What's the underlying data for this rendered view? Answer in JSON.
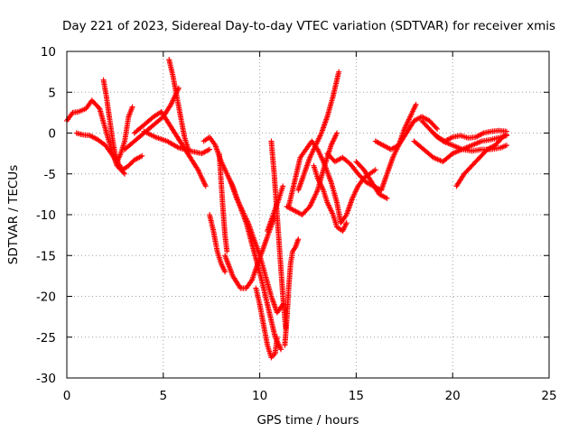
{
  "chart_data": {
    "type": "scatter",
    "title": "Day 221 of 2023, Sidereal Day-to-day VTEC variation (SDTVAR) for receiver xmis",
    "xlabel": "GPS time / hours",
    "ylabel": "SDTVAR / TECUs",
    "xlim": [
      0,
      25
    ],
    "ylim": [
      -30,
      10
    ],
    "xticks": [
      "0",
      "5",
      "10",
      "15",
      "20",
      "25"
    ],
    "yticks": [
      "10",
      "5",
      "0",
      "-5",
      "-10",
      "-15",
      "-20",
      "-25",
      "-30"
    ],
    "grid": true,
    "marker": "+",
    "color": "#ff0000",
    "series": [
      {
        "x": [
          0,
          0.3,
          0.6,
          1.0,
          1.3,
          1.7,
          2.0,
          2.3,
          2.6,
          3.0
        ],
        "y": [
          1.5,
          2.5,
          2.6,
          3.0,
          4.0,
          3.0,
          0.5,
          -2.0,
          -4.0,
          -5.0
        ]
      },
      {
        "x": [
          0.5,
          0.8,
          1.2,
          1.6,
          2.0,
          2.3,
          2.6,
          2.9,
          3.2,
          3.5,
          3.9
        ],
        "y": [
          0.0,
          -0.2,
          -0.3,
          -0.8,
          -1.5,
          -2.5,
          -3.5,
          -4.5,
          -4.0,
          -3.3,
          -2.8
        ]
      },
      {
        "x": [
          1.9,
          2.05,
          2.2,
          2.35,
          2.5,
          2.65
        ],
        "y": [
          6.5,
          4.5,
          2.0,
          -0.5,
          -2.5,
          -3.5
        ]
      },
      {
        "x": [
          2.6,
          2.8,
          3.0,
          3.1,
          3.2,
          3.4
        ],
        "y": [
          -3.5,
          -2.5,
          -1.0,
          0.5,
          2.0,
          3.2
        ]
      },
      {
        "x": [
          3.0,
          3.5,
          4.0,
          4.5,
          5.0,
          5.4,
          5.8
        ],
        "y": [
          -2.0,
          -1.0,
          0.0,
          1.0,
          2.0,
          3.5,
          5.5
        ]
      },
      {
        "x": [
          3.5,
          4.0,
          4.5,
          4.9,
          5.2,
          5.6,
          6.0,
          6.4,
          6.8,
          7.2
        ],
        "y": [
          0.0,
          1.0,
          2.0,
          2.6,
          1.5,
          0.0,
          -1.5,
          -3.0,
          -4.5,
          -6.5
        ]
      },
      {
        "x": [
          5.3,
          5.5,
          5.7,
          5.9,
          6.1,
          6.3
        ],
        "y": [
          9.0,
          7.0,
          4.5,
          2.0,
          -0.5,
          -2.0
        ]
      },
      {
        "x": [
          4.0,
          4.6,
          5.2,
          5.8,
          6.4,
          7.0,
          7.4
        ],
        "y": [
          0.2,
          -0.5,
          -1.0,
          -1.8,
          -2.2,
          -2.5,
          -2.0
        ]
      },
      {
        "x": [
          7.1,
          7.4,
          7.7,
          8.0,
          8.3,
          8.6,
          8.9,
          9.3,
          9.7,
          10.1,
          10.5,
          10.8,
          11.1
        ],
        "y": [
          -1.0,
          -0.5,
          -1.5,
          -3.5,
          -5.0,
          -6.5,
          -8.5,
          -11.0,
          -14.5,
          -18.0,
          -22.0,
          -25.0,
          -26.5
        ]
      },
      {
        "x": [
          7.4,
          7.6,
          7.8,
          8.0,
          8.2
        ],
        "y": [
          -10.0,
          -12.0,
          -14.5,
          -16.0,
          -17.0
        ]
      },
      {
        "x": [
          7.9,
          8.0,
          8.1,
          8.2,
          8.3
        ],
        "y": [
          -2.5,
          -6.0,
          -9.5,
          -12.5,
          -14.5
        ]
      },
      {
        "x": [
          8.5,
          8.8,
          9.1,
          9.4,
          9.7,
          10.0,
          10.3,
          10.6,
          10.9,
          11.2
        ],
        "y": [
          -6.0,
          -8.0,
          -9.5,
          -11.0,
          -13.0,
          -15.0,
          -17.5,
          -20.0,
          -22.0,
          -21.0
        ]
      },
      {
        "x": [
          8.2,
          8.6,
          9.0,
          9.3,
          9.6,
          9.9,
          10.2,
          10.5,
          10.8
        ],
        "y": [
          -15.0,
          -17.5,
          -19.0,
          -19.0,
          -18.0,
          -16.0,
          -14.0,
          -12.0,
          -10.0
        ]
      },
      {
        "x": [
          9.8,
          10.0,
          10.2,
          10.4,
          10.6,
          10.8,
          10.9
        ],
        "y": [
          -19.0,
          -21.0,
          -23.5,
          -26.0,
          -27.5,
          -27.0,
          -25.0
        ]
      },
      {
        "x": [
          10.6,
          10.75,
          10.9,
          11.05,
          11.2,
          11.35
        ],
        "y": [
          -1.0,
          -5.0,
          -10.0,
          -15.0,
          -20.0,
          -24.0
        ]
      },
      {
        "x": [
          11.3,
          11.4,
          11.5,
          11.6,
          11.7,
          11.85,
          12.0
        ],
        "y": [
          -26.0,
          -23.0,
          -19.0,
          -16.0,
          -14.5,
          -14.0,
          -13.0
        ]
      },
      {
        "x": [
          10.4,
          10.7,
          11.0,
          11.2
        ],
        "y": [
          -12.0,
          -10.0,
          -8.0,
          -6.5
        ]
      },
      {
        "x": [
          11.4,
          11.8,
          12.2,
          12.6,
          13.0,
          13.3,
          13.7,
          14.0
        ],
        "y": [
          -9.0,
          -9.5,
          -10.0,
          -9.0,
          -7.0,
          -4.5,
          -1.5,
          0.0
        ]
      },
      {
        "x": [
          11.5,
          11.8,
          12.1,
          12.4,
          12.7,
          13.0,
          13.3,
          13.7,
          14.0,
          14.2
        ],
        "y": [
          -9.0,
          -6.0,
          -3.0,
          -2.0,
          -1.0,
          -2.0,
          -3.5,
          -6.0,
          -8.5,
          -11.0
        ]
      },
      {
        "x": [
          12.0,
          12.3,
          12.6,
          12.9,
          13.2,
          13.5,
          13.8,
          14.1
        ],
        "y": [
          -7.0,
          -5.0,
          -3.0,
          -1.5,
          0.0,
          2.0,
          4.5,
          7.5
        ]
      },
      {
        "x": [
          12.8,
          13.0,
          13.3,
          13.5,
          13.8,
          14.0,
          14.3,
          14.5
        ],
        "y": [
          -4.0,
          -5.5,
          -7.0,
          -8.5,
          -10.0,
          -11.5,
          -12.0,
          -11.0
        ]
      },
      {
        "x": [
          14.2,
          14.5,
          14.8,
          15.1,
          15.4,
          15.7,
          16.0
        ],
        "y": [
          -11.0,
          -10.0,
          -8.0,
          -6.5,
          -5.5,
          -5.0,
          -4.5
        ]
      },
      {
        "x": [
          13.5,
          13.9,
          14.3,
          14.7,
          15.1,
          15.5,
          15.9,
          16.3
        ],
        "y": [
          -2.5,
          -3.5,
          -3.0,
          -3.8,
          -5.0,
          -6.0,
          -6.5,
          -7.0
        ]
      },
      {
        "x": [
          15.0,
          15.4,
          15.8,
          16.2,
          16.6
        ],
        "y": [
          -3.5,
          -4.5,
          -6.0,
          -7.5,
          -8.0
        ]
      },
      {
        "x": [
          16.3,
          16.6,
          16.9,
          17.2,
          17.5,
          17.8,
          18.1
        ],
        "y": [
          -7.0,
          -5.0,
          -3.0,
          -1.5,
          0.5,
          2.0,
          3.5
        ]
      },
      {
        "x": [
          16.0,
          16.4,
          16.8,
          17.2,
          17.6,
          18.0,
          18.4,
          18.8,
          19.2
        ],
        "y": [
          -1.0,
          -1.5,
          -2.0,
          -1.5,
          0.0,
          1.5,
          2.0,
          1.5,
          0.5
        ]
      },
      {
        "x": [
          18.4,
          18.8,
          19.2,
          19.6,
          20.0,
          20.4,
          20.8,
          21.2,
          21.6,
          22.0,
          22.4,
          22.8
        ],
        "y": [
          1.5,
          0.5,
          -0.5,
          -1.0,
          -0.5,
          -0.3,
          -0.6,
          -0.5,
          0.0,
          0.2,
          0.3,
          0.2
        ]
      },
      {
        "x": [
          18.0,
          18.5,
          19.0,
          19.5,
          20.0,
          20.5,
          21.0,
          21.5,
          22.0,
          22.5,
          22.8
        ],
        "y": [
          -1.0,
          -2.0,
          -3.0,
          -3.5,
          -2.5,
          -2.0,
          -1.5,
          -1.0,
          -0.8,
          -0.5,
          -0.3
        ]
      },
      {
        "x": [
          19.0,
          19.5,
          20.0,
          20.5,
          21.0,
          21.5,
          22.0,
          22.5,
          22.8
        ],
        "y": [
          0.0,
          -1.0,
          -1.5,
          -2.0,
          -2.2,
          -2.0,
          -2.0,
          -1.8,
          -1.5
        ]
      },
      {
        "x": [
          20.2,
          20.6,
          21.0,
          21.4,
          21.8,
          22.2,
          22.6,
          22.8
        ],
        "y": [
          -6.5,
          -5.0,
          -4.0,
          -3.0,
          -2.0,
          -1.5,
          -0.5,
          -0.2
        ]
      }
    ]
  }
}
